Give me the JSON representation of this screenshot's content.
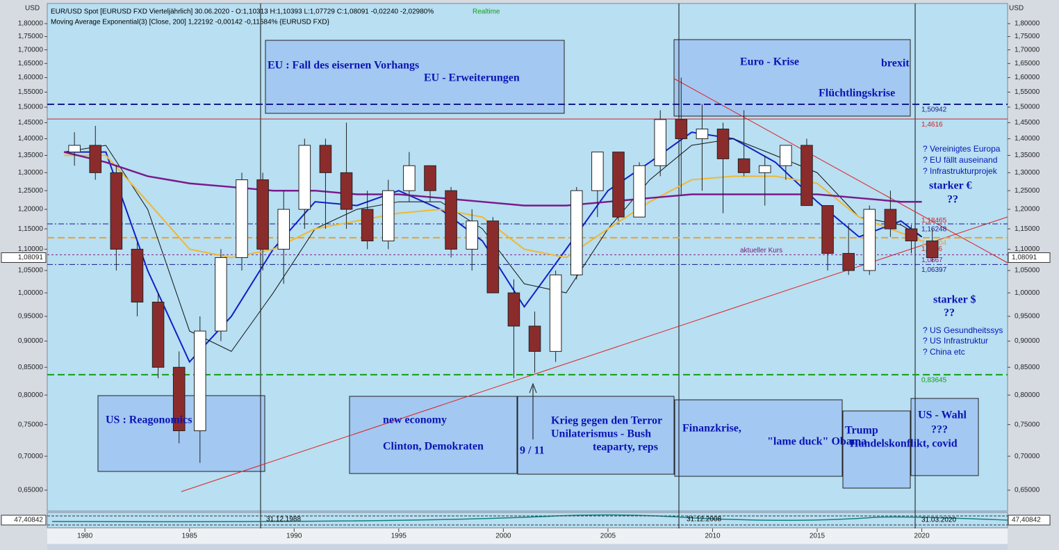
{
  "chart_data": {
    "type": "candlestick",
    "header": "EUR/USD Spot [EURUSD FXD Vierteljährlich] 30.06.2020 - O:1,10313 H:1,10393 L:1,07729 C:1,08091 -0,02240 -2,02980%",
    "status": "Realtime",
    "indicator_header": "Moving Average Exponential(3) [Close, 200] 1,22192 -0,00142 -0,11584% {EURUSD FXD}",
    "axis_unit": "USD",
    "log_scale": true,
    "up_color": "#ffffff",
    "down_color": "#8b2c2c",
    "x": [
      1979,
      1980,
      1981,
      1982,
      1983,
      1984,
      1985,
      1986,
      1987,
      1988,
      1989,
      1990,
      1991,
      1992,
      1993,
      1994,
      1995,
      1996,
      1997,
      1998,
      1999,
      2000,
      2001,
      2002,
      2003,
      2004,
      2005,
      2006,
      2007,
      2008,
      2009,
      2010,
      2011,
      2012,
      2013,
      2014,
      2015,
      2016,
      2017,
      2018,
      2019,
      2020
    ],
    "open": [
      1.36,
      1.38,
      1.3,
      1.1,
      0.98,
      0.85,
      0.74,
      0.92,
      1.08,
      1.28,
      1.1,
      1.2,
      1.38,
      1.3,
      1.2,
      1.12,
      1.25,
      1.32,
      1.25,
      1.1,
      1.17,
      1.0,
      0.93,
      0.88,
      1.04,
      1.25,
      1.36,
      1.18,
      1.32,
      1.46,
      1.4,
      1.43,
      1.34,
      1.3,
      1.32,
      1.38,
      1.21,
      1.09,
      1.05,
      1.2,
      1.15,
      1.12
    ],
    "high": [
      1.42,
      1.44,
      1.32,
      1.12,
      1.0,
      0.88,
      0.95,
      1.1,
      1.3,
      1.3,
      1.25,
      1.4,
      1.4,
      1.45,
      1.25,
      1.28,
      1.36,
      1.32,
      1.26,
      1.2,
      1.18,
      1.03,
      0.96,
      1.05,
      1.26,
      1.36,
      1.36,
      1.33,
      1.49,
      1.6,
      1.51,
      1.45,
      1.49,
      1.35,
      1.38,
      1.4,
      1.21,
      1.16,
      1.21,
      1.25,
      1.16,
      1.15
    ],
    "low": [
      1.32,
      1.28,
      1.05,
      0.95,
      0.83,
      0.72,
      0.69,
      0.9,
      1.05,
      1.05,
      1.02,
      1.15,
      1.15,
      1.15,
      1.1,
      1.1,
      1.22,
      1.22,
      1.08,
      1.05,
      1.0,
      0.83,
      0.84,
      0.86,
      1.03,
      1.18,
      1.17,
      1.18,
      1.29,
      1.24,
      1.25,
      1.19,
      1.29,
      1.21,
      1.28,
      1.21,
      1.05,
      1.04,
      1.04,
      1.13,
      1.09,
      1.07
    ],
    "close": [
      1.38,
      1.3,
      1.1,
      0.98,
      0.85,
      0.74,
      0.92,
      1.08,
      1.28,
      1.1,
      1.2,
      1.38,
      1.3,
      1.2,
      1.12,
      1.25,
      1.32,
      1.25,
      1.1,
      1.17,
      1.0,
      0.93,
      0.88,
      1.04,
      1.25,
      1.36,
      1.18,
      1.32,
      1.46,
      1.4,
      1.43,
      1.34,
      1.3,
      1.32,
      1.38,
      1.21,
      1.09,
      1.05,
      1.2,
      1.15,
      1.12,
      1.08
    ],
    "lines": [
      {
        "color": "#1020c8",
        "width": 2,
        "x": [
          1979,
          1981,
          1983,
          1985,
          1987,
          1989,
          1991,
          1993,
          1995,
          1997,
          1999,
          2001,
          2003,
          2005,
          2007,
          2009,
          2011,
          2013,
          2015,
          2017,
          2019,
          2020
        ],
        "values": [
          1.36,
          1.36,
          1.05,
          0.86,
          0.95,
          1.1,
          1.22,
          1.21,
          1.25,
          1.2,
          1.12,
          0.97,
          1.1,
          1.25,
          1.33,
          1.42,
          1.4,
          1.33,
          1.22,
          1.13,
          1.17,
          1.13
        ]
      },
      {
        "color": "#111111",
        "width": 1,
        "x": [
          1979,
          1981,
          1983,
          1985,
          1987,
          1989,
          1991,
          1993,
          1995,
          1997,
          1999,
          2001,
          2003,
          2005,
          2007,
          2009,
          2011,
          2013,
          2015,
          2017,
          2019,
          2020
        ],
        "values": [
          1.36,
          1.38,
          1.2,
          0.92,
          0.88,
          1.0,
          1.15,
          1.2,
          1.22,
          1.22,
          1.15,
          1.02,
          1.0,
          1.15,
          1.28,
          1.38,
          1.4,
          1.35,
          1.3,
          1.18,
          1.16,
          1.13
        ]
      },
      {
        "color": "#f0b830",
        "width": 2,
        "x": [
          1979,
          1981,
          1983,
          1985,
          1987,
          1989,
          1991,
          1993,
          1995,
          1997,
          1999,
          2001,
          2003,
          2005,
          2007,
          2009,
          2011,
          2013,
          2015,
          2017,
          2019,
          2020
        ],
        "values": [
          1.35,
          1.35,
          1.22,
          1.1,
          1.08,
          1.1,
          1.15,
          1.17,
          1.19,
          1.2,
          1.18,
          1.1,
          1.08,
          1.15,
          1.22,
          1.28,
          1.29,
          1.29,
          1.27,
          1.18,
          1.14,
          1.12
        ]
      },
      {
        "color": "#7a1a8a",
        "width": 2.5,
        "x": [
          1979,
          1981,
          1983,
          1985,
          1987,
          1989,
          1991,
          1993,
          1995,
          1997,
          1999,
          2001,
          2003,
          2005,
          2007,
          2009,
          2011,
          2013,
          2015,
          2017,
          2019,
          2020
        ],
        "values": [
          1.36,
          1.33,
          1.29,
          1.27,
          1.26,
          1.25,
          1.25,
          1.24,
          1.24,
          1.23,
          1.22,
          1.21,
          1.21,
          1.22,
          1.23,
          1.24,
          1.24,
          1.24,
          1.24,
          1.23,
          1.22,
          1.22
        ]
      }
    ],
    "levels": [
      {
        "value": 1.50942,
        "label": "1,50942",
        "color": "#1a1a8c",
        "style": "dashed"
      },
      {
        "value": 1.4616,
        "label": "1,4616",
        "color": "#d02020",
        "style": "solid"
      },
      {
        "value": 1.18465,
        "label": "1,18465",
        "color": "#d02020",
        "style": "none"
      },
      {
        "value": 1.16248,
        "label": "1,16248",
        "color": "#1a1a8c",
        "style": "dashdot"
      },
      {
        "value": 1.12804,
        "label": "1,12804",
        "color": "#f0a020",
        "style": "dashed"
      },
      {
        "value": 1.1136,
        "label": "1,1136",
        "color": "#d02020",
        "style": "none"
      },
      {
        "value": 1.0867,
        "label": "1,0867",
        "color": "#8a1a8a",
        "style": "dotted"
      },
      {
        "value": 1.06397,
        "label": "1,06397",
        "color": "#1a1a8c",
        "style": "dashdot"
      },
      {
        "value": 0.83645,
        "label": "0,83645",
        "color": "#10a010",
        "style": "dashed"
      }
    ],
    "current_price_note": "aktueller Kurs",
    "last_price_label": "1,08091",
    "indicator_value_label": "47,40842",
    "date_markers": [
      "31.12.1988",
      "31.12.2008",
      "31.03.2020"
    ],
    "boxes": [
      {
        "lines": [
          "EU :  Fall des eisernen Vorhangs",
          "EU  -  Erweiterungen"
        ]
      },
      {
        "lines": [
          "Euro  -  Krise",
          "brexit",
          "Flüchtlingskrise"
        ]
      },
      {
        "lines": [
          "US :  Reagonomics"
        ]
      },
      {
        "lines": [
          "new  economy",
          "Clinton, Demokraten"
        ]
      },
      {
        "lines": [
          "Krieg gegen den Terror",
          "Unilaterismus - Bush",
          "teaparty, reps",
          "9  /  11"
        ]
      },
      {
        "lines": [
          "Finanzkrise,",
          "\"lame duck\"  Obama"
        ]
      },
      {
        "lines": [
          "Trump",
          "Handelskonflikt, covid"
        ]
      },
      {
        "lines": [
          "US - Wahl",
          "???"
        ]
      }
    ],
    "notes": [
      "?  Vereinigtes Europa",
      "?  EU  fällt auseinand",
      "?  Infrastrukturprojek",
      "starker €",
      "??",
      "starker $",
      "??",
      "?  US Gesundheitssys",
      "?  US Infrastruktur",
      "?  China etc"
    ],
    "xlim": [
      1978.2,
      2024.1
    ],
    "xticks": [
      1980,
      1985,
      1990,
      1995,
      2000,
      2005,
      2010,
      2015,
      2020
    ],
    "ylim": [
      0.621,
      1.881
    ],
    "yticks": [
      {
        "value": 0.65,
        "label": "0,65000"
      },
      {
        "value": 0.7,
        "label": "0,70000"
      },
      {
        "value": 0.75,
        "label": "0,75000"
      },
      {
        "value": 0.8,
        "label": "0,80000"
      },
      {
        "value": 0.85,
        "label": "0,85000"
      },
      {
        "value": 0.9,
        "label": "0,90000"
      },
      {
        "value": 0.95,
        "label": "0,95000"
      },
      {
        "value": 1.0,
        "label": "1,00000"
      },
      {
        "value": 1.05,
        "label": "1,05000"
      },
      {
        "value": 1.1,
        "label": "1,10000"
      },
      {
        "value": 1.15,
        "label": "1,15000"
      },
      {
        "value": 1.2,
        "label": "1,20000"
      },
      {
        "value": 1.25,
        "label": "1,25000"
      },
      {
        "value": 1.3,
        "label": "1,30000"
      },
      {
        "value": 1.35,
        "label": "1,35000"
      },
      {
        "value": 1.4,
        "label": "1,40000"
      },
      {
        "value": 1.45,
        "label": "1,45000"
      },
      {
        "value": 1.5,
        "label": "1,50000"
      },
      {
        "value": 1.55,
        "label": "1,55000"
      },
      {
        "value": 1.6,
        "label": "1,60000"
      },
      {
        "value": 1.65,
        "label": "1,65000"
      },
      {
        "value": 1.7,
        "label": "1,70000"
      },
      {
        "value": 1.75,
        "label": "1,75000"
      },
      {
        "value": 1.8,
        "label": "1,80000"
      }
    ]
  }
}
